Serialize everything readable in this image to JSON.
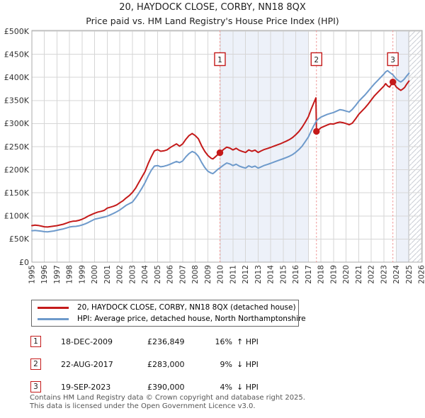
{
  "header": {
    "title": "20, HAYDOCK CLOSE, CORBY, NN18 8QX",
    "subtitle": "Price paid vs. HM Land Registry's House Price Index (HPI)"
  },
  "legend": {
    "items": [
      {
        "label": "20, HAYDOCK CLOSE, CORBY, NN18 8QX (detached house)",
        "color": "#c41a1a"
      },
      {
        "label": "HPI: Average price, detached house, North Northamptonshire",
        "color": "#6e9acb"
      }
    ]
  },
  "transactions": [
    {
      "num": "1",
      "date": "18-DEC-2009",
      "price": "£236,849",
      "pct": "16%",
      "rel": "↑ HPI"
    },
    {
      "num": "2",
      "date": "22-AUG-2017",
      "price": "£283,000",
      "pct": "9%",
      "rel": "↓ HPI"
    },
    {
      "num": "3",
      "date": "19-SEP-2023",
      "price": "£390,000",
      "pct": "4%",
      "rel": "↓ HPI"
    }
  ],
  "footer": {
    "line1": "Contains HM Land Registry data © Crown copyright and database right 2025.",
    "line2": "This data is licensed under the Open Government Licence v3.0."
  },
  "chart_data": {
    "type": "line",
    "title": "20, HAYDOCK CLOSE, CORBY, NN18 8QX",
    "subtitle": "Price paid vs. HM Land Registry's House Price Index (HPI)",
    "unit": "GBP thousands",
    "xlim": [
      1995,
      2026.05
    ],
    "ylim_k": [
      0,
      500
    ],
    "grid": true,
    "legend_position": "below",
    "y_ticks": [
      "£0",
      "£50K",
      "£100K",
      "£150K",
      "£200K",
      "£250K",
      "£300K",
      "£350K",
      "£400K",
      "£450K",
      "£500K"
    ],
    "x_ticks": [
      "1995",
      "1996",
      "1997",
      "1998",
      "1999",
      "2000",
      "2001",
      "2002",
      "2003",
      "2004",
      "2005",
      "2006",
      "2007",
      "2008",
      "2009",
      "2010",
      "2011",
      "2012",
      "2013",
      "2014",
      "2015",
      "2016",
      "2017",
      "2018",
      "2019",
      "2020",
      "2021",
      "2022",
      "2023",
      "2024",
      "2025",
      "2026"
    ],
    "bands": [
      [
        2010,
        2017
      ],
      [
        2024,
        2025
      ]
    ],
    "hatch": [
      2025,
      2026.05
    ],
    "colors": {
      "property": "#c41a1a",
      "hpi": "#6e9acb",
      "band": "#edf1f9",
      "sale_line": "#ef9595",
      "grid": "#d6d6d6",
      "border": "#ababab",
      "hatch_line": "#c9cdd4",
      "hatch_edge": "#8a8a8a",
      "tick_text": "#333333",
      "marker_text": "#222222"
    },
    "sales": [
      {
        "label": "1",
        "date": "18-DEC-2009",
        "x": 2009.96,
        "price_gbp": 236849,
        "price_k": 236.849,
        "vs_hpi": "16% above HPI"
      },
      {
        "label": "2",
        "date": "22-AUG-2017",
        "x": 2017.64,
        "price_gbp": 283000,
        "price_k": 283,
        "vs_hpi": "9% below HPI"
      },
      {
        "label": "3",
        "date": "19-SEP-2023",
        "x": 2023.72,
        "price_gbp": 390000,
        "price_k": 390,
        "vs_hpi": "4% below HPI"
      }
    ],
    "series": [
      {
        "name": "20, HAYDOCK CLOSE, CORBY, NN18 8QX (detached house)",
        "color": "#c41a1a",
        "points": [
          [
            1995,
            79
          ],
          [
            1995.25,
            80
          ],
          [
            1995.5,
            79.5
          ],
          [
            1995.75,
            78
          ],
          [
            1996,
            76.5
          ],
          [
            1996.25,
            76
          ],
          [
            1996.5,
            77
          ],
          [
            1996.75,
            78
          ],
          [
            1997,
            79
          ],
          [
            1997.25,
            80.5
          ],
          [
            1997.5,
            82
          ],
          [
            1997.75,
            84.5
          ],
          [
            1998,
            87
          ],
          [
            1998.25,
            88.5
          ],
          [
            1998.5,
            89
          ],
          [
            1998.75,
            90.5
          ],
          [
            1999,
            93
          ],
          [
            1999.25,
            96
          ],
          [
            1999.5,
            100
          ],
          [
            1999.75,
            103
          ],
          [
            2000,
            106
          ],
          [
            2000.25,
            108.5
          ],
          [
            2000.5,
            110
          ],
          [
            2000.75,
            112
          ],
          [
            2001,
            117
          ],
          [
            2001.25,
            119
          ],
          [
            2001.5,
            121
          ],
          [
            2001.75,
            124
          ],
          [
            2002,
            128.5
          ],
          [
            2002.25,
            133
          ],
          [
            2002.5,
            139
          ],
          [
            2002.75,
            144
          ],
          [
            2003,
            151
          ],
          [
            2003.25,
            160
          ],
          [
            2003.5,
            172
          ],
          [
            2003.75,
            184
          ],
          [
            2004,
            196
          ],
          [
            2004.25,
            213
          ],
          [
            2004.5,
            228
          ],
          [
            2004.75,
            241
          ],
          [
            2005,
            243.5
          ],
          [
            2005.25,
            240
          ],
          [
            2005.5,
            241
          ],
          [
            2005.75,
            243
          ],
          [
            2006,
            248
          ],
          [
            2006.25,
            252
          ],
          [
            2006.5,
            256
          ],
          [
            2006.75,
            251
          ],
          [
            2007,
            256
          ],
          [
            2007.25,
            266
          ],
          [
            2007.5,
            274
          ],
          [
            2007.75,
            278.5
          ],
          [
            2008,
            274
          ],
          [
            2008.25,
            267
          ],
          [
            2008.5,
            252
          ],
          [
            2008.75,
            240
          ],
          [
            2009,
            231
          ],
          [
            2009.25,
            225
          ],
          [
            2009.4,
            223.5
          ],
          [
            2009.6,
            228
          ],
          [
            2009.8,
            233
          ],
          [
            2009.96,
            236.849
          ],
          [
            2010.25,
            244
          ],
          [
            2010.5,
            249
          ],
          [
            2010.75,
            247
          ],
          [
            2011,
            243
          ],
          [
            2011.25,
            246.5
          ],
          [
            2011.5,
            242
          ],
          [
            2011.75,
            239.5
          ],
          [
            2012,
            237.5
          ],
          [
            2012.25,
            243
          ],
          [
            2012.5,
            240
          ],
          [
            2012.75,
            242.5
          ],
          [
            2013,
            237.5
          ],
          [
            2013.25,
            241
          ],
          [
            2013.5,
            244
          ],
          [
            2013.75,
            246
          ],
          [
            2014,
            248.5
          ],
          [
            2014.25,
            251
          ],
          [
            2014.5,
            253.5
          ],
          [
            2014.75,
            256
          ],
          [
            2015,
            259
          ],
          [
            2015.25,
            262
          ],
          [
            2015.5,
            265.5
          ],
          [
            2015.75,
            270
          ],
          [
            2016,
            276
          ],
          [
            2016.25,
            283
          ],
          [
            2016.5,
            292
          ],
          [
            2016.75,
            303
          ],
          [
            2017,
            315
          ],
          [
            2017.2,
            330
          ],
          [
            2017.4,
            343
          ],
          [
            2017.6,
            355.5
          ],
          [
            2017.64,
            283
          ],
          [
            2017.8,
            286
          ],
          [
            2018,
            291
          ],
          [
            2018.25,
            294
          ],
          [
            2018.5,
            297
          ],
          [
            2018.75,
            299.5
          ],
          [
            2019,
            299
          ],
          [
            2019.25,
            301.5
          ],
          [
            2019.5,
            303
          ],
          [
            2019.75,
            302
          ],
          [
            2020,
            300
          ],
          [
            2020.25,
            297.5
          ],
          [
            2020.5,
            301
          ],
          [
            2020.75,
            310
          ],
          [
            2021,
            320
          ],
          [
            2021.25,
            327
          ],
          [
            2021.5,
            334
          ],
          [
            2021.75,
            342
          ],
          [
            2022,
            351
          ],
          [
            2022.25,
            360
          ],
          [
            2022.5,
            367
          ],
          [
            2022.75,
            374
          ],
          [
            2023,
            381
          ],
          [
            2023.15,
            386.5
          ],
          [
            2023.3,
            381.5
          ],
          [
            2023.45,
            379
          ],
          [
            2023.6,
            385
          ],
          [
            2023.72,
            390
          ],
          [
            2023.85,
            385
          ],
          [
            2024,
            379
          ],
          [
            2024.2,
            374.5
          ],
          [
            2024.35,
            372
          ],
          [
            2024.5,
            374.5
          ],
          [
            2024.65,
            378
          ],
          [
            2024.8,
            384.5
          ],
          [
            2025,
            392
          ]
        ]
      },
      {
        "name": "HPI: Average price, detached house, North Northamptonshire",
        "color": "#6e9acb",
        "points": [
          [
            1995,
            68
          ],
          [
            1995.25,
            68.5
          ],
          [
            1995.5,
            68
          ],
          [
            1995.75,
            67
          ],
          [
            1996,
            66
          ],
          [
            1996.25,
            65.5
          ],
          [
            1996.5,
            66.5
          ],
          [
            1996.75,
            67.5
          ],
          [
            1997,
            69
          ],
          [
            1997.25,
            70.5
          ],
          [
            1997.5,
            72
          ],
          [
            1997.75,
            74
          ],
          [
            1998,
            76
          ],
          [
            1998.25,
            77
          ],
          [
            1998.5,
            77.5
          ],
          [
            1998.75,
            78.5
          ],
          [
            1999,
            80.5
          ],
          [
            1999.25,
            83
          ],
          [
            1999.5,
            86
          ],
          [
            1999.75,
            89.5
          ],
          [
            2000,
            93
          ],
          [
            2000.25,
            94.5
          ],
          [
            2000.5,
            96
          ],
          [
            2000.75,
            97.5
          ],
          [
            2001,
            99.5
          ],
          [
            2001.25,
            102.5
          ],
          [
            2001.5,
            105.5
          ],
          [
            2001.75,
            109
          ],
          [
            2002,
            113
          ],
          [
            2002.25,
            118
          ],
          [
            2002.5,
            123
          ],
          [
            2002.75,
            126.5
          ],
          [
            2003,
            130
          ],
          [
            2003.25,
            139
          ],
          [
            2003.5,
            149
          ],
          [
            2003.75,
            160
          ],
          [
            2004,
            172
          ],
          [
            2004.25,
            186
          ],
          [
            2004.5,
            199
          ],
          [
            2004.75,
            208
          ],
          [
            2005,
            209
          ],
          [
            2005.25,
            206.5
          ],
          [
            2005.5,
            207.5
          ],
          [
            2005.75,
            209.5
          ],
          [
            2006,
            212
          ],
          [
            2006.25,
            215
          ],
          [
            2006.5,
            218
          ],
          [
            2006.75,
            215.5
          ],
          [
            2007,
            219
          ],
          [
            2007.25,
            228
          ],
          [
            2007.5,
            235
          ],
          [
            2007.75,
            239.5
          ],
          [
            2008,
            236.5
          ],
          [
            2008.25,
            229
          ],
          [
            2008.5,
            216
          ],
          [
            2008.75,
            205
          ],
          [
            2009,
            197
          ],
          [
            2009.25,
            193
          ],
          [
            2009.4,
            191.5
          ],
          [
            2009.6,
            196
          ],
          [
            2009.8,
            201
          ],
          [
            2009.96,
            204
          ],
          [
            2010.25,
            210
          ],
          [
            2010.5,
            214.5
          ],
          [
            2010.75,
            212.5
          ],
          [
            2011,
            209
          ],
          [
            2011.25,
            212
          ],
          [
            2011.5,
            208
          ],
          [
            2011.75,
            205.5
          ],
          [
            2012,
            203.5
          ],
          [
            2012.25,
            208.5
          ],
          [
            2012.5,
            205.5
          ],
          [
            2012.75,
            208
          ],
          [
            2013,
            203.5
          ],
          [
            2013.25,
            206.5
          ],
          [
            2013.5,
            209.5
          ],
          [
            2013.75,
            211.5
          ],
          [
            2014,
            214
          ],
          [
            2014.25,
            216.5
          ],
          [
            2014.5,
            219
          ],
          [
            2014.75,
            221.5
          ],
          [
            2015,
            224
          ],
          [
            2015.25,
            226.5
          ],
          [
            2015.5,
            229.5
          ],
          [
            2015.75,
            233
          ],
          [
            2016,
            238
          ],
          [
            2016.25,
            244
          ],
          [
            2016.5,
            251
          ],
          [
            2016.75,
            261
          ],
          [
            2017,
            271
          ],
          [
            2017.2,
            283
          ],
          [
            2017.4,
            294
          ],
          [
            2017.64,
            306
          ],
          [
            2017.8,
            310
          ],
          [
            2018,
            314
          ],
          [
            2018.25,
            317
          ],
          [
            2018.5,
            320
          ],
          [
            2018.75,
            322
          ],
          [
            2019,
            324
          ],
          [
            2019.25,
            327
          ],
          [
            2019.5,
            330
          ],
          [
            2019.75,
            329
          ],
          [
            2020,
            327
          ],
          [
            2020.25,
            325
          ],
          [
            2020.5,
            331
          ],
          [
            2020.75,
            339
          ],
          [
            2021,
            348
          ],
          [
            2021.25,
            355
          ],
          [
            2021.5,
            362
          ],
          [
            2021.75,
            370
          ],
          [
            2022,
            378
          ],
          [
            2022.25,
            386
          ],
          [
            2022.5,
            393
          ],
          [
            2022.75,
            400
          ],
          [
            2023,
            407
          ],
          [
            2023.15,
            412
          ],
          [
            2023.3,
            414.5
          ],
          [
            2023.45,
            411
          ],
          [
            2023.6,
            408
          ],
          [
            2023.72,
            405.5
          ],
          [
            2023.85,
            401
          ],
          [
            2024,
            396.5
          ],
          [
            2024.2,
            392
          ],
          [
            2024.35,
            390
          ],
          [
            2024.5,
            393
          ],
          [
            2024.65,
            397
          ],
          [
            2024.8,
            402.5
          ],
          [
            2025,
            409
          ]
        ]
      }
    ]
  }
}
